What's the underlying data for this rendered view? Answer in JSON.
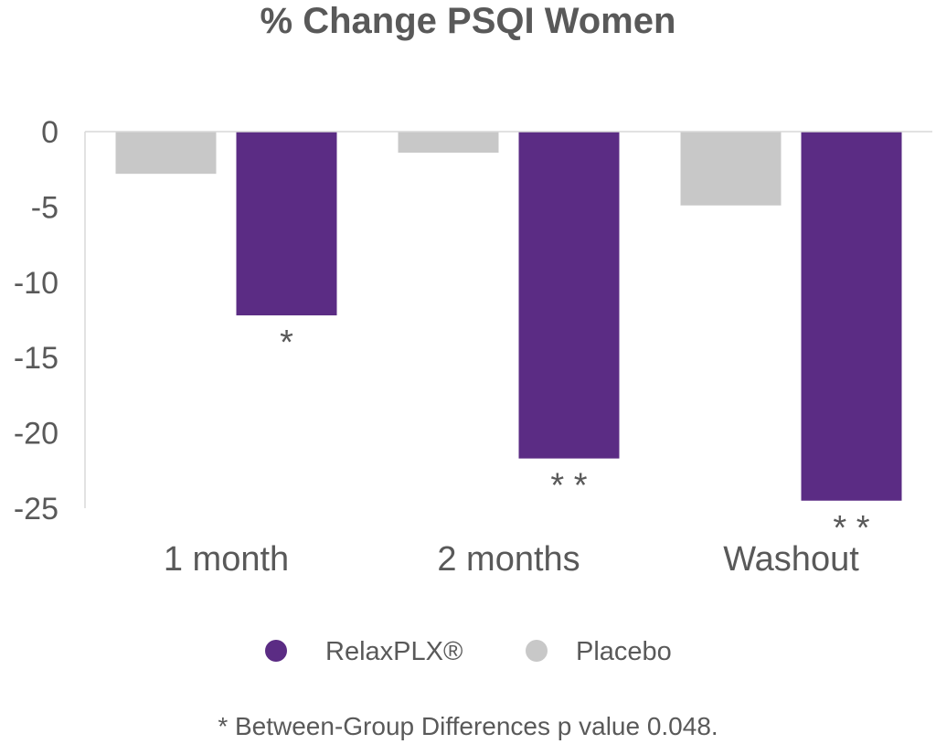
{
  "chart_data": {
    "type": "bar",
    "title": "% Change PSQI Women",
    "categories": [
      "1 month",
      "2 months",
      "Washout"
    ],
    "series": [
      {
        "name": "Placebo",
        "values": [
          -2.8,
          -1.4,
          -4.9
        ],
        "color": "#c8c8c8"
      },
      {
        "name": "RelaxPLX®",
        "values": [
          -12.2,
          -21.7,
          -24.5
        ],
        "color": "#5b2c84"
      }
    ],
    "annotations": [
      "*",
      "* *",
      "* *"
    ],
    "yticks": [
      0,
      -5,
      -10,
      -15,
      -20,
      -25
    ],
    "ylim": [
      -25,
      0
    ],
    "grid": false,
    "legend": {
      "position": "bottom",
      "order": [
        "RelaxPLX®",
        "Placebo"
      ]
    },
    "footnote": "*  Between-Group Differences p value 0.048."
  }
}
